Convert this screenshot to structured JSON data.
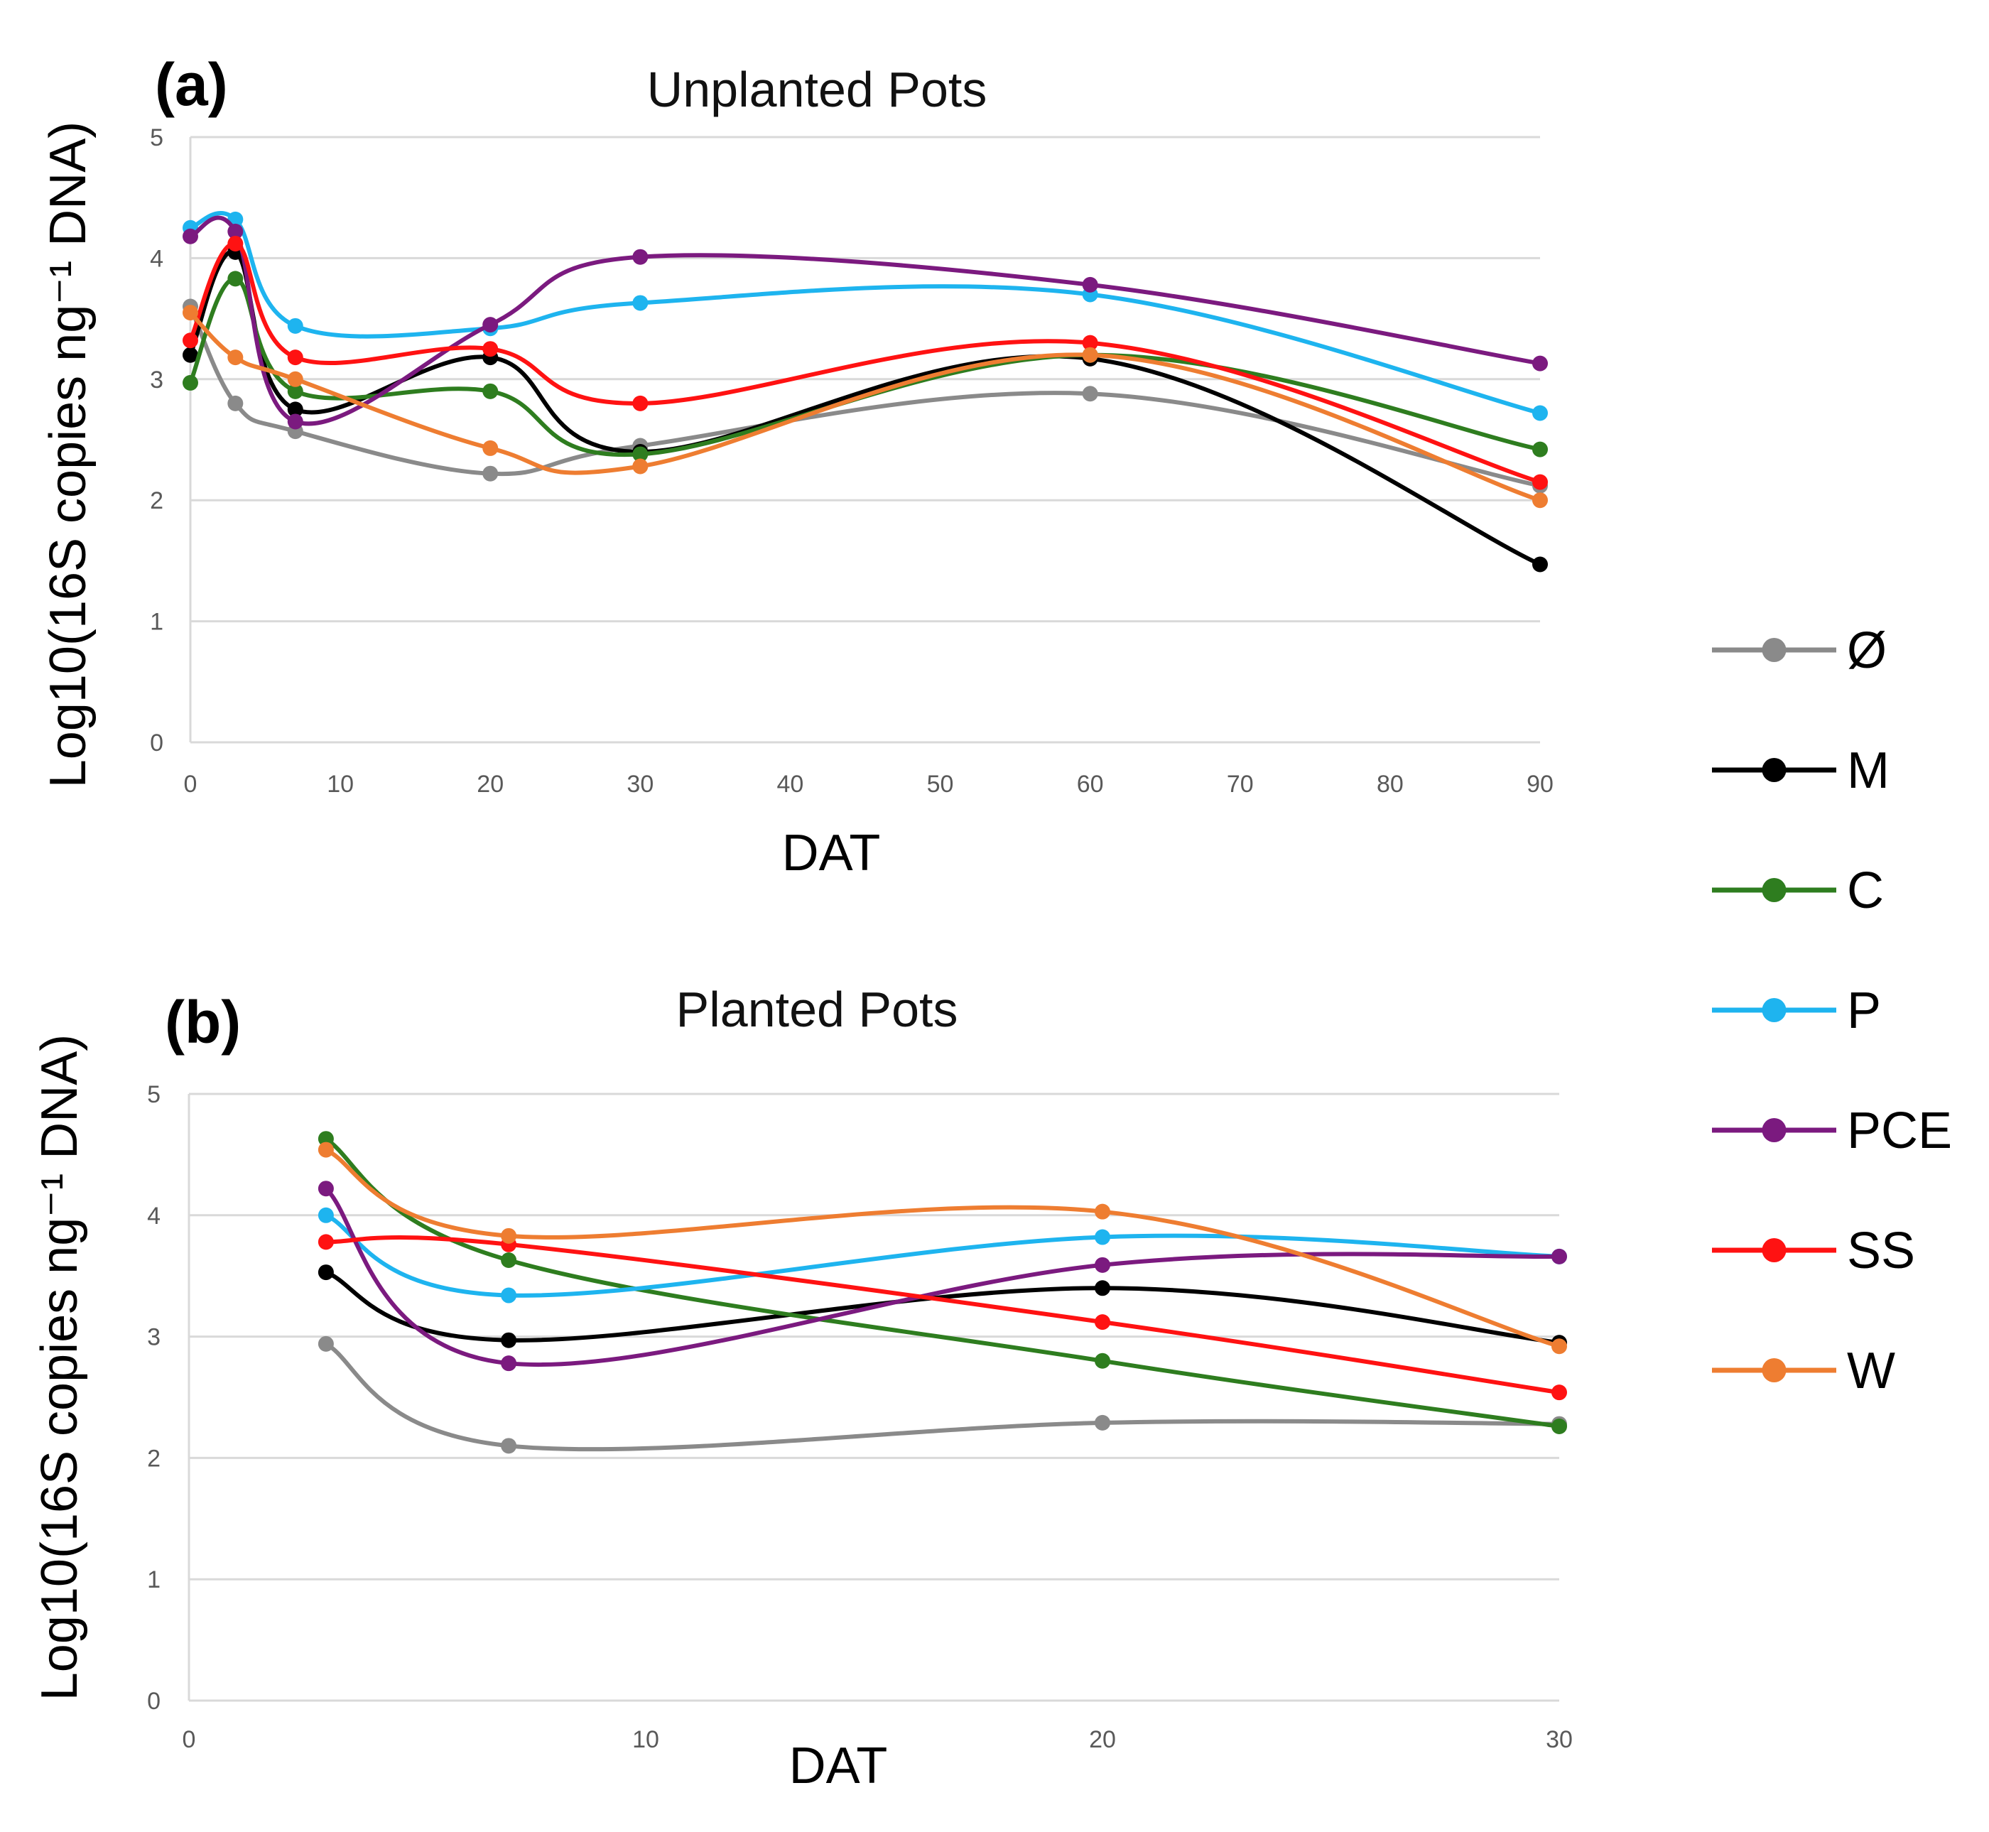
{
  "colors": {
    "Ø": "#8a8a8a",
    "M": "#000000",
    "C": "#2e7d1f",
    "P": "#1eb4ef",
    "PCE": "#7b1a7f",
    "SS": "#ff1212",
    "W": "#ee7d31"
  },
  "legend": [
    "Ø",
    "M",
    "C",
    "P",
    "PCE",
    "SS",
    "W"
  ],
  "chart_data": [
    {
      "type": "line",
      "panel": "(a)",
      "title": "Unplanted Pots",
      "xlabel": "DAT",
      "ylabel": "Log10(16S copies ng⁻¹ DNA)",
      "xlim": [
        0,
        90
      ],
      "ylim": [
        0,
        5
      ],
      "xticks": [
        0,
        10,
        20,
        30,
        40,
        50,
        60,
        70,
        80,
        90
      ],
      "yticks": [
        0,
        1,
        2,
        3,
        4,
        5
      ],
      "x": [
        0,
        3,
        7,
        20,
        30,
        60,
        90
      ],
      "series": [
        {
          "name": "Ø",
          "values": [
            3.6,
            2.8,
            2.57,
            2.22,
            2.45,
            2.88,
            2.12
          ]
        },
        {
          "name": "M",
          "values": [
            3.2,
            4.05,
            2.75,
            3.18,
            2.4,
            3.17,
            1.47
          ]
        },
        {
          "name": "C",
          "values": [
            2.97,
            3.83,
            2.9,
            2.9,
            2.38,
            3.2,
            2.42
          ]
        },
        {
          "name": "P",
          "values": [
            4.25,
            4.32,
            3.44,
            3.42,
            3.63,
            3.7,
            2.72
          ]
        },
        {
          "name": "PCE",
          "values": [
            4.18,
            4.22,
            2.65,
            3.45,
            4.01,
            3.78,
            3.13
          ]
        },
        {
          "name": "SS",
          "values": [
            3.32,
            4.12,
            3.18,
            3.25,
            2.8,
            3.3,
            2.15
          ]
        },
        {
          "name": "W",
          "values": [
            3.55,
            3.18,
            3.0,
            2.43,
            2.28,
            3.2,
            2.0
          ]
        }
      ]
    },
    {
      "type": "line",
      "panel": "(b)",
      "title": "Planted Pots",
      "xlabel": "DAT",
      "ylabel": "Log10(16S copies ng⁻¹ DNA)",
      "xlim": [
        0,
        30
      ],
      "ylim": [
        0,
        5
      ],
      "xticks": [
        0,
        10,
        20,
        30
      ],
      "yticks": [
        0,
        1,
        2,
        3,
        4,
        5
      ],
      "x": [
        3,
        7,
        20,
        30
      ],
      "series": [
        {
          "name": "Ø",
          "values": [
            2.94,
            2.1,
            2.29,
            2.28
          ]
        },
        {
          "name": "M",
          "values": [
            3.53,
            2.97,
            3.4,
            2.95
          ]
        },
        {
          "name": "C",
          "values": [
            4.63,
            3.63,
            2.8,
            2.26
          ]
        },
        {
          "name": "P",
          "values": [
            4.0,
            3.34,
            3.82,
            3.66
          ]
        },
        {
          "name": "PCE",
          "values": [
            4.22,
            2.78,
            3.59,
            3.66
          ]
        },
        {
          "name": "SS",
          "values": [
            3.78,
            3.76,
            3.12,
            2.54
          ]
        },
        {
          "name": "W",
          "values": [
            4.54,
            3.83,
            4.03,
            2.92
          ]
        }
      ]
    }
  ]
}
